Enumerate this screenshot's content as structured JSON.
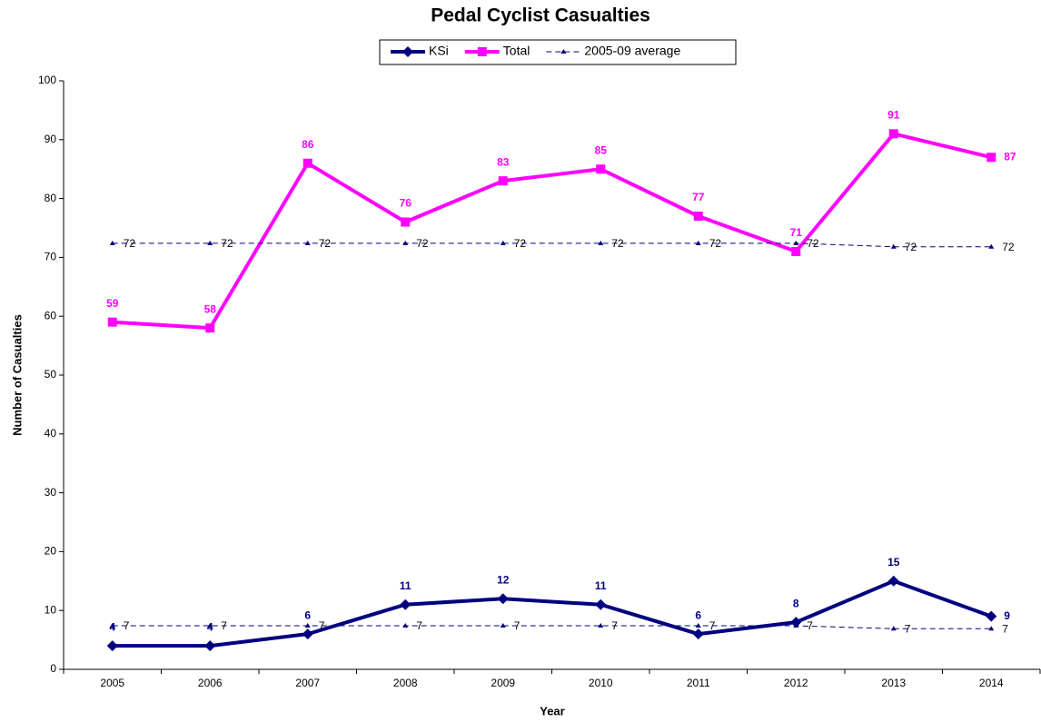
{
  "chart_data": {
    "type": "line",
    "title": "Pedal Cyclist Casualties",
    "x_label": "Year",
    "y_label": "Number of Casualties",
    "categories": [
      "2005",
      "2006",
      "2007",
      "2008",
      "2009",
      "2010",
      "2011",
      "2012",
      "2013",
      "2014"
    ],
    "series": [
      {
        "name": "KSi",
        "color": "#000080",
        "marker": "diamond",
        "width": 4,
        "values": [
          4,
          4,
          6,
          11,
          12,
          11,
          6,
          8,
          15,
          9
        ]
      },
      {
        "name": "Total",
        "color": "#ff00ff",
        "marker": "square",
        "width": 4,
        "values": [
          59,
          58,
          86,
          76,
          83,
          85,
          77,
          71,
          91,
          87
        ]
      },
      {
        "name": "2005-09 average",
        "color": "#000080",
        "marker": "star",
        "width": 1,
        "dashed": true,
        "values": [
          72.4,
          72.4,
          72.4,
          72.4,
          72.4,
          72.4,
          72.4,
          72.4,
          71.8,
          71.8
        ],
        "value_labels": [
          "72",
          "72",
          "72",
          "72",
          "72",
          "72",
          "72",
          "72",
          "72",
          "72"
        ]
      },
      {
        "color": "#000080",
        "marker": "star",
        "width": 1,
        "dashed": true,
        "values": [
          7.4,
          7.4,
          7.4,
          7.4,
          7.4,
          7.4,
          7.4,
          7.4,
          6.9,
          6.9
        ],
        "value_labels": [
          "7",
          "7",
          "7",
          "7",
          "7",
          "7",
          "7",
          "7",
          "7",
          "7"
        ]
      }
    ],
    "ylim": [
      0,
      100
    ],
    "yticks": [
      0,
      10,
      20,
      30,
      40,
      50,
      60,
      70,
      80,
      90,
      100
    ],
    "grid": false,
    "legend": "top"
  }
}
